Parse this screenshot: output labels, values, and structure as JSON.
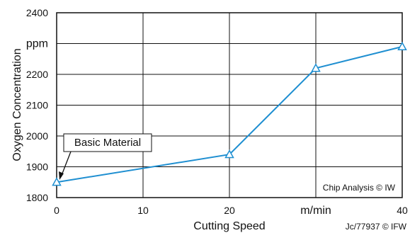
{
  "chart_data": {
    "type": "line",
    "x": [
      0,
      20,
      30,
      40
    ],
    "series": [
      {
        "values": [
          1850,
          1940,
          2220,
          2290
        ],
        "color": "#1f8fd1",
        "marker": "triangle"
      }
    ],
    "xlabel": "Cutting Speed",
    "x_unit": "m/min",
    "ylabel": "Oxygen Concentration",
    "y_unit": "ppm",
    "xlim": [
      0,
      40
    ],
    "ylim": [
      1800,
      2400
    ],
    "x_ticks": [
      "0",
      "10",
      "20",
      "m/min",
      "40"
    ],
    "y_ticks": [
      "1800",
      "1900",
      "2000",
      "2100",
      "2200",
      "ppm",
      "2400"
    ],
    "grid": true,
    "annotations": {
      "basic_material": "Basic Material",
      "chip_analysis": "Chip Analysis © IW",
      "footer_ref": "Jc/77937 © IFW"
    }
  }
}
